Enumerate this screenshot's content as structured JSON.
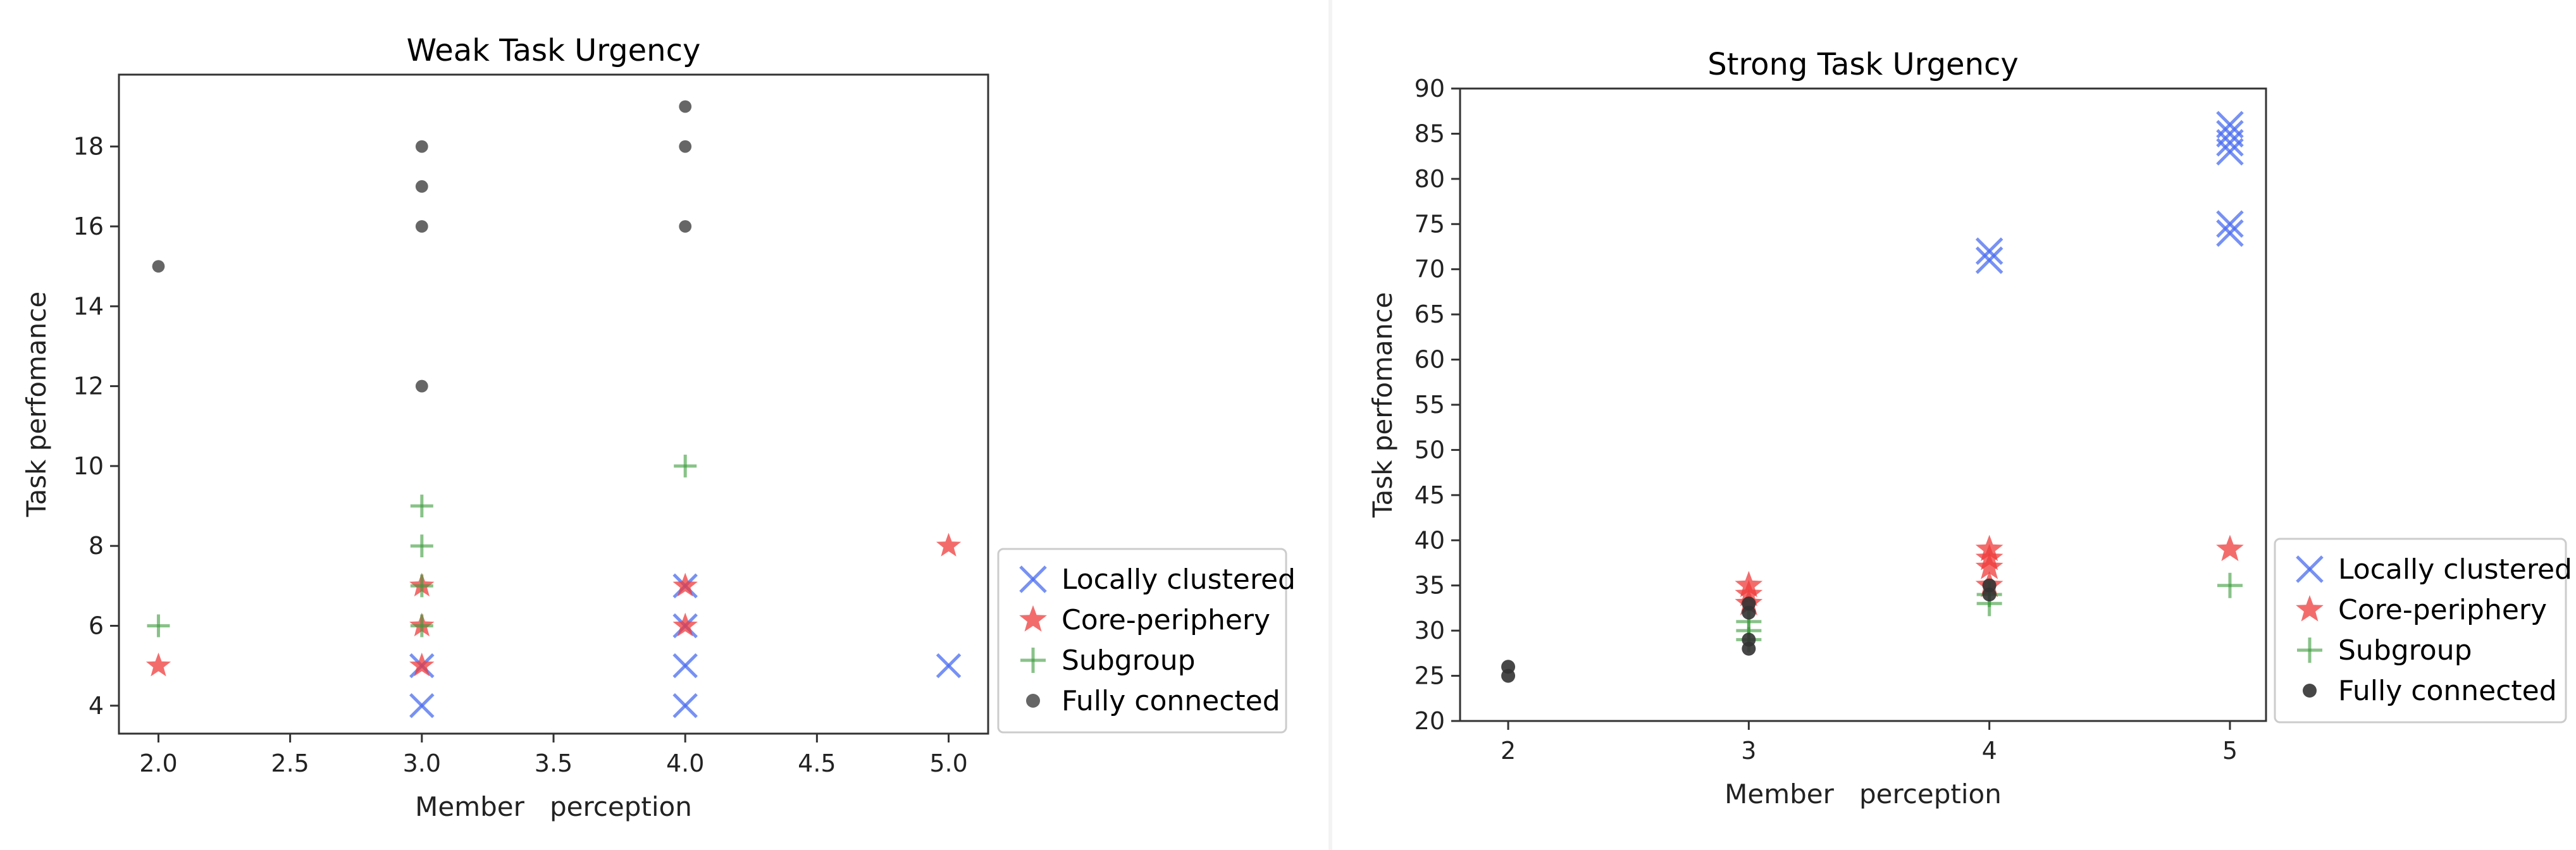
{
  "chart_data": [
    {
      "type": "scatter",
      "title": "Weak Task Urgency",
      "xlabel": "Member   perception",
      "ylabel": "Task perfomance",
      "xlim": [
        1.85,
        5.15
      ],
      "ylim": [
        3.3,
        19.8
      ],
      "xticks": [
        "2.0",
        "2.5",
        "3.0",
        "3.5",
        "4.0",
        "4.5",
        "5.0"
      ],
      "yticks": [
        "4",
        "6",
        "8",
        "10",
        "12",
        "14",
        "16",
        "18"
      ],
      "legend_position": "outside-right",
      "grid": false,
      "series": [
        {
          "name": "Locally clustered",
          "marker": "x",
          "color": "#4a6cf0",
          "points": [
            [
              3,
              4
            ],
            [
              3,
              5
            ],
            [
              4,
              4
            ],
            [
              4,
              5
            ],
            [
              4,
              6
            ],
            [
              4,
              7
            ],
            [
              5,
              5
            ]
          ]
        },
        {
          "name": "Core-periphery",
          "marker": "star",
          "color": "#ef3b3b",
          "points": [
            [
              2,
              5
            ],
            [
              3,
              5
            ],
            [
              3,
              6
            ],
            [
              3,
              7
            ],
            [
              4,
              6
            ],
            [
              4,
              7
            ],
            [
              5,
              8
            ]
          ]
        },
        {
          "name": "Subgroup",
          "marker": "plus",
          "color": "#3a9a3a",
          "points": [
            [
              2,
              6
            ],
            [
              3,
              6
            ],
            [
              3,
              7
            ],
            [
              3,
              8
            ],
            [
              3,
              9
            ],
            [
              4,
              10
            ]
          ]
        },
        {
          "name": "Fully connected",
          "marker": "dot",
          "color": "#555555",
          "points": [
            [
              2,
              15
            ],
            [
              3,
              12
            ],
            [
              3,
              16
            ],
            [
              3,
              17
            ],
            [
              3,
              18
            ],
            [
              4,
              16
            ],
            [
              4,
              18
            ],
            [
              4,
              19
            ]
          ]
        }
      ]
    },
    {
      "type": "scatter",
      "title": "Strong Task Urgency",
      "xlabel": "Member   perception",
      "ylabel": "Task perfomance",
      "xlim": [
        1.8,
        5.15
      ],
      "ylim": [
        20,
        90
      ],
      "xticks": [
        "2",
        "3",
        "4",
        "5"
      ],
      "yticks": [
        "20",
        "25",
        "30",
        "35",
        "40",
        "45",
        "50",
        "55",
        "60",
        "65",
        "70",
        "75",
        "80",
        "85",
        "90"
      ],
      "legend_position": "outside-right",
      "grid": false,
      "series": [
        {
          "name": "Locally clustered",
          "marker": "x",
          "color": "#4a6cf0",
          "points": [
            [
              4,
              71
            ],
            [
              4,
              72
            ],
            [
              5,
              74
            ],
            [
              5,
              75
            ],
            [
              5,
              83
            ],
            [
              5,
              84
            ],
            [
              5,
              85
            ],
            [
              5,
              86
            ]
          ]
        },
        {
          "name": "Core-periphery",
          "marker": "star",
          "color": "#ef3b3b",
          "points": [
            [
              3,
              33
            ],
            [
              3,
              34
            ],
            [
              3,
              35
            ],
            [
              4,
              35
            ],
            [
              4,
              37
            ],
            [
              4,
              38
            ],
            [
              4,
              39
            ],
            [
              5,
              39
            ]
          ]
        },
        {
          "name": "Subgroup",
          "marker": "plus",
          "color": "#3a9a3a",
          "points": [
            [
              3,
              29
            ],
            [
              3,
              30
            ],
            [
              3,
              31
            ],
            [
              4,
              33
            ],
            [
              4,
              34
            ],
            [
              5,
              35
            ]
          ]
        },
        {
          "name": "Fully connected",
          "marker": "dot",
          "color": "#333333",
          "points": [
            [
              2,
              25
            ],
            [
              2,
              26
            ],
            [
              3,
              28
            ],
            [
              3,
              29
            ],
            [
              3,
              32
            ],
            [
              3,
              33
            ],
            [
              4,
              34
            ],
            [
              4,
              35
            ]
          ]
        }
      ]
    }
  ]
}
